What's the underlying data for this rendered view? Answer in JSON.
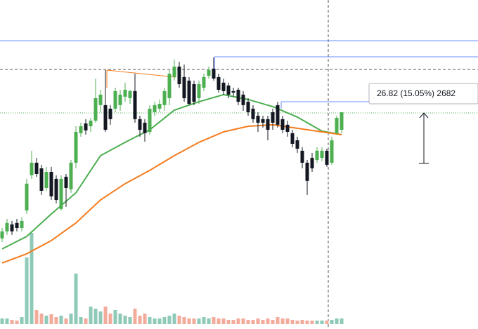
{
  "chart_data": {
    "type": "candlestick",
    "annotation": "26.82 (15.05%) 2682",
    "ylim": [
      89.1,
      265
    ],
    "up_color": "#4caf50",
    "down_color": "#131722",
    "volume_up_color": "#8fcab9",
    "volume_down_color": "#f3ab9c",
    "open": [
      137.5,
      141.3,
      145,
      145.8,
      143.1,
      152.5,
      171.3,
      178,
      175,
      164.5,
      173.1,
      169.4,
      153.3,
      170.5,
      163.8,
      178,
      193.8,
      199,
      197.5,
      200.5,
      208.8,
      208.8,
      206.9,
      206.9,
      208.8,
      213.3,
      212.5,
      216.3,
      201.3,
      199.4,
      194.5,
      205,
      206.9,
      208.8,
      212.5,
      223.8,
      229.4,
      223.8,
      221.9,
      220,
      212.5,
      218.1,
      224.5,
      228.3,
      223.8,
      220.8,
      219.3,
      216.3,
      217,
      214.4,
      210.6,
      206.9,
      203.1,
      201.3,
      201.3,
      205,
      208.8,
      201.3,
      198.3,
      193.8,
      190,
      184.4,
      178,
      180.6,
      179.5,
      180.6,
      184.4,
      178,
      193.8,
      195.6
    ],
    "high": [
      143.1,
      148,
      146.9,
      148,
      148.8,
      169.4,
      184.4,
      180.6,
      176.9,
      175.8,
      175.8,
      171.3,
      171.3,
      172,
      179.5,
      197.5,
      199.4,
      201.3,
      202,
      223,
      217,
      227.5,
      208.8,
      218.1,
      217,
      220.8,
      217,
      225.6,
      203.1,
      201.3,
      208.8,
      210.6,
      211.8,
      218.1,
      227.5,
      233.1,
      232,
      230.5,
      223.8,
      221.9,
      221.9,
      225.6,
      229.4,
      234.3,
      225.6,
      223,
      220.8,
      218.1,
      218.1,
      216.3,
      212.5,
      208.8,
      205,
      203.1,
      203.1,
      206.9,
      210.6,
      203.1,
      200.5,
      195.6,
      191.9,
      186.3,
      179.5,
      183.3,
      186.3,
      186.3,
      185.5,
      191.9,
      203.1,
      205
    ],
    "low": [
      135.6,
      139.4,
      139.4,
      141.3,
      141.3,
      150.6,
      169.4,
      170.5,
      160.8,
      163,
      158.1,
      156.3,
      152.5,
      154.4,
      161.9,
      175,
      191.9,
      193,
      194.5,
      199.4,
      205,
      194.5,
      198.3,
      205,
      205.8,
      210.6,
      209.5,
      199.4,
      191.9,
      189.3,
      193,
      203.1,
      205,
      205.8,
      208.8,
      221.9,
      218.1,
      210.6,
      208.8,
      208.8,
      209.5,
      216.3,
      223,
      221.9,
      215.5,
      214.4,
      212.5,
      213.3,
      208.8,
      205.8,
      203.1,
      199.4,
      194.5,
      196.8,
      190,
      195.6,
      196.8,
      193.8,
      191.9,
      186.3,
      183.3,
      175,
      160.8,
      173.1,
      178,
      178.8,
      175.8,
      176.9,
      193,
      193.8
    ],
    "close": [
      141.3,
      145.8,
      141.3,
      143.1,
      146.9,
      166.8,
      178,
      172,
      163,
      173.1,
      160,
      158.1,
      169.4,
      164.5,
      178,
      194.5,
      197.5,
      195.3,
      200.5,
      212.5,
      214.4,
      195.6,
      201.3,
      216.3,
      214.4,
      217,
      216.3,
      201.3,
      195.6,
      193.8,
      206.9,
      208.8,
      209.5,
      216.3,
      225.6,
      229.4,
      220,
      212.5,
      209.5,
      210.6,
      220,
      223.8,
      227.5,
      223,
      217,
      216.3,
      214.4,
      215.5,
      210.6,
      208.8,
      205,
      201.3,
      199.4,
      199.4,
      195.6,
      199.4,
      198.3,
      195.6,
      194.5,
      188.1,
      185.5,
      178,
      168.3,
      175,
      184.4,
      184.4,
      176.9,
      190,
      202,
      205
    ],
    "volume": [
      8,
      8,
      6,
      5,
      10,
      95,
      130,
      20,
      15,
      12,
      14,
      10,
      12,
      8,
      15,
      72,
      10,
      8,
      25,
      22,
      18,
      25,
      15,
      20,
      15,
      12,
      10,
      22,
      12,
      15,
      10,
      8,
      8,
      10,
      12,
      15,
      12,
      10,
      8,
      8,
      8,
      10,
      8,
      10,
      8,
      8,
      6,
      6,
      8,
      8,
      6,
      6,
      8,
      6,
      8,
      6,
      10,
      8,
      8,
      6,
      5,
      6,
      5,
      5,
      5,
      5,
      5,
      6,
      8,
      8
    ],
    "moving_averages": [
      {
        "color": "#4caf50",
        "x": [
          0,
          5,
          10,
          15,
          20,
          25,
          30,
          35,
          40,
          45,
          50,
          55,
          60,
          65,
          69
        ],
        "values": [
          131.9,
          138.6,
          150.6,
          161.9,
          181.8,
          188.9,
          195.6,
          206.1,
          210.6,
          214.4,
          211.8,
          208,
          202.4,
          194.9,
          193
        ]
      },
      {
        "color": "#f57c1f",
        "x": [
          0,
          5,
          10,
          15,
          20,
          25,
          30,
          35,
          40,
          45,
          50,
          55,
          60,
          65,
          69
        ],
        "values": [
          124.4,
          129.3,
          136.4,
          145.8,
          158.1,
          166.8,
          173.9,
          181.8,
          188.9,
          194.5,
          197.5,
          198.3,
          196.4,
          194.5,
          193
        ]
      }
    ]
  }
}
